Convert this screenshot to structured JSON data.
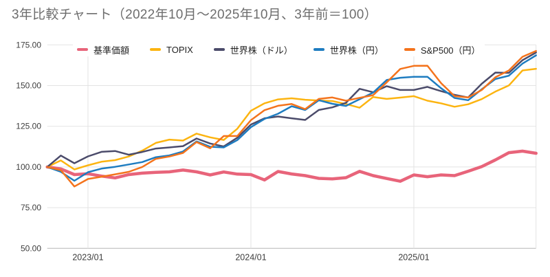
{
  "title": "3年比較チャート（2022年10月～2025年10月、3年前＝100）",
  "colors": {
    "background": "#ffffff",
    "title_text": "#6d6d6d",
    "tick_text": "#3c3c3c",
    "gridline": "#e3e3e3",
    "axis_line": "#b5b5b5"
  },
  "chart_data": {
    "type": "line",
    "title": "3年比較チャート（2022年10月～2025年10月、3年前＝100）",
    "legend_position": "top",
    "grid": "on",
    "ylim": [
      50,
      175
    ],
    "y_ticks": [
      50,
      75,
      100,
      125,
      150,
      175
    ],
    "y_tick_labels": [
      "50.00",
      "75.00",
      "100.00",
      "125.00",
      "150.00",
      "175.00"
    ],
    "x_tick_indices": [
      3,
      15,
      27
    ],
    "x_tick_labels": [
      "2023/01",
      "2024/01",
      "2025/01"
    ],
    "x": [
      "2022/10",
      "2022/11",
      "2022/12",
      "2023/01",
      "2023/02",
      "2023/03",
      "2023/04",
      "2023/05",
      "2023/06",
      "2023/07",
      "2023/08",
      "2023/09",
      "2023/10",
      "2023/11",
      "2023/12",
      "2024/01",
      "2024/02",
      "2024/03",
      "2024/04",
      "2024/05",
      "2024/06",
      "2024/07",
      "2024/08",
      "2024/09",
      "2024/10",
      "2024/11",
      "2024/12",
      "2025/01",
      "2025/02",
      "2025/03",
      "2025/04",
      "2025/05",
      "2025/06",
      "2025/07",
      "2025/08",
      "2025/09",
      "2025/10"
    ],
    "series": [
      {
        "id": "fund-nav",
        "name": "基準価額",
        "color": "#e8647a",
        "line_width": 4.5,
        "values": [
          100,
          98.8,
          95.3,
          95.8,
          94.4,
          93.3,
          95.3,
          96.2,
          96.7,
          97.0,
          98.1,
          97.0,
          95.1,
          96.9,
          95.6,
          95.3,
          92.0,
          97.2,
          95.7,
          94.7,
          93.0,
          92.7,
          93.4,
          97.3,
          94.7,
          92.9,
          91.2,
          95.1,
          94.0,
          95.1,
          94.7,
          97.4,
          100.2,
          104.3,
          108.8,
          109.7,
          108.4
        ]
      },
      {
        "id": "topix",
        "name": "TOPIX",
        "color": "#fcb410",
        "line_width": 2.5,
        "values": [
          100,
          104.0,
          98.5,
          101.0,
          103.2,
          104.2,
          106.4,
          110.0,
          114.8,
          116.8,
          116.2,
          120.5,
          118.2,
          116.6,
          123.5,
          134.5,
          139.1,
          141.5,
          142.2,
          141.3,
          140.8,
          140.5,
          138.7,
          136.4,
          143.0,
          141.8,
          142.6,
          143.5,
          140.7,
          139.1,
          137.0,
          138.5,
          141.7,
          146.3,
          150.1,
          159.3,
          160.3
        ]
      },
      {
        "id": "world-usd",
        "name": "世界株（ドル）",
        "color": "#4b4b6a",
        "line_width": 2.5,
        "values": [
          100,
          107.0,
          102.3,
          106.5,
          109.3,
          109.8,
          107.5,
          109.2,
          111.3,
          112.0,
          112.8,
          117.5,
          114.4,
          112.6,
          118.0,
          126.0,
          129.9,
          131.0,
          129.9,
          128.9,
          135.0,
          136.6,
          139.4,
          148.0,
          145.9,
          149.6,
          147.3,
          147.3,
          149.2,
          146.6,
          144.3,
          142.7,
          151.1,
          158.0,
          157.8,
          165.6,
          170.3
        ]
      },
      {
        "id": "world-jpy",
        "name": "世界株（円）",
        "color": "#1e7cc0",
        "line_width": 2.5,
        "values": [
          100,
          97.0,
          91.5,
          96.8,
          99.0,
          100.1,
          101.5,
          103.0,
          106.0,
          107.1,
          109.5,
          115.7,
          112.4,
          112.0,
          116.5,
          124.4,
          129.5,
          132.7,
          137.3,
          135.0,
          141.0,
          138.8,
          137.5,
          141.6,
          145.7,
          153.4,
          154.8,
          155.4,
          155.4,
          148.4,
          142.4,
          141.0,
          147.7,
          154.0,
          156.1,
          163.5,
          168.6
        ]
      },
      {
        "id": "sp500-jpy",
        "name": "S&P500（円）",
        "color": "#f4731c",
        "line_width": 2.5,
        "values": [
          100,
          98.0,
          88.0,
          92.6,
          94.0,
          95.5,
          97.0,
          100.0,
          105.0,
          106.4,
          108.6,
          115.3,
          111.5,
          119.0,
          119.0,
          128.7,
          134.9,
          137.6,
          138.7,
          135.5,
          141.8,
          142.7,
          140.7,
          142.5,
          144.1,
          152.0,
          160.2,
          162.1,
          162.2,
          151.5,
          143.5,
          142.7,
          147.3,
          155.1,
          159.3,
          167.7,
          171.3
        ]
      }
    ]
  }
}
